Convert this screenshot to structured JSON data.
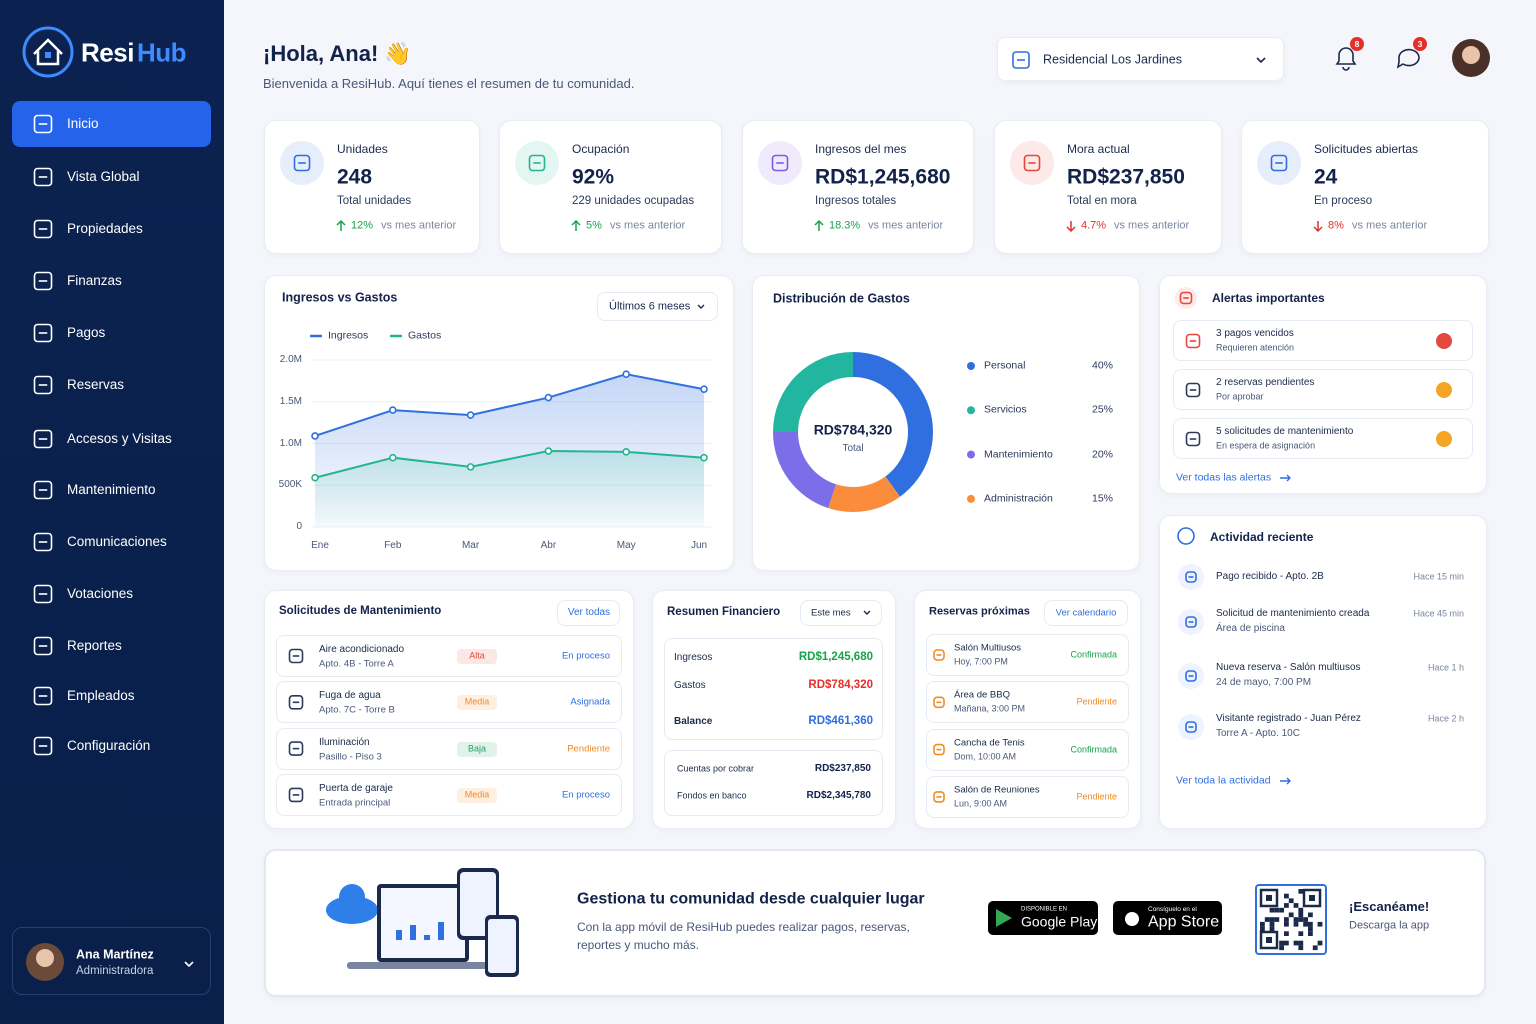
{
  "brand": {
    "first": "Resi",
    "second": "Hub"
  },
  "nav": [
    {
      "label": "Inicio",
      "active": true
    },
    {
      "label": "Vista Global"
    },
    {
      "label": "Propiedades"
    },
    {
      "label": "Finanzas"
    },
    {
      "label": "Pagos"
    },
    {
      "label": "Reservas"
    },
    {
      "label": "Accesos y Visitas"
    },
    {
      "label": "Mantenimiento"
    },
    {
      "label": "Comunicaciones"
    },
    {
      "label": "Votaciones"
    },
    {
      "label": "Reportes"
    },
    {
      "label": "Empleados"
    },
    {
      "label": "Configuración"
    }
  ],
  "user": {
    "name": "Ana Martínez",
    "role": "Administradora"
  },
  "header": {
    "greeting": "¡Hola, Ana! 👋",
    "subtitle": "Bienvenida a ResiHub. Aquí tienes el resumen de tu comunidad.",
    "community": "Residencial Los Jardines",
    "notifications": 8,
    "messages": 3
  },
  "kpis": [
    {
      "label": "Unidades",
      "value": "248",
      "sub": "Total unidades",
      "change": "12%",
      "compare": "vs mes anterior",
      "trend": "up",
      "color": "#2f6fe0"
    },
    {
      "label": "Ocupación",
      "value": "92%",
      "sub": "229 unidades ocupadas",
      "change": "5%",
      "compare": "vs mes anterior",
      "trend": "up",
      "color": "#22b58f"
    },
    {
      "label": "Ingresos del mes",
      "value": "RD$1,245,680",
      "sub": "Ingresos totales",
      "change": "18.3%",
      "compare": "vs mes anterior",
      "trend": "up",
      "color": "#7b5ce8"
    },
    {
      "label": "Mora actual",
      "value": "RD$237,850",
      "sub": "Total en mora",
      "change": "4.7%",
      "compare": "vs mes anterior",
      "trend": "down",
      "color": "#e5483e"
    },
    {
      "label": "Solicitudes abiertas",
      "value": "24",
      "sub": "En proceso",
      "change": "8%",
      "compare": "vs mes anterior",
      "trend": "down",
      "color": "#2f6fe0"
    }
  ],
  "chart_data": [
    {
      "type": "line",
      "title": "Ingresos vs Gastos",
      "period": "Últimos 6 meses",
      "categories": [
        "Ene",
        "Feb",
        "Mar",
        "Abr",
        "May",
        "Jun"
      ],
      "series": [
        {
          "name": "Ingresos",
          "color": "#2f6fe0",
          "values": [
            1090000,
            1400000,
            1340000,
            1550000,
            1830000,
            1650000
          ]
        },
        {
          "name": "Gastos",
          "color": "#22b58f",
          "values": [
            590000,
            830000,
            720000,
            910000,
            900000,
            830000
          ]
        }
      ],
      "ylim": [
        0,
        2000000
      ],
      "yticks": [
        0,
        {
          "value": 500000,
          "label": "500K"
        },
        {
          "value": 1000000,
          "label": "1.0M"
        },
        {
          "value": 1500000,
          "label": "1.5M"
        },
        {
          "value": 2000000,
          "label": "2.0M"
        }
      ],
      "grid": true,
      "legend": "top-left"
    },
    {
      "type": "pie",
      "title": "Distribución de Gastos",
      "center_value": "RD$784,320",
      "center_label": "Total",
      "categories": [
        "Personal",
        "Servicios",
        "Mantenimiento",
        "Administración"
      ],
      "values": [
        40,
        25,
        20,
        15
      ],
      "value_labels": [
        "40%",
        "25%",
        "20%",
        "15%"
      ],
      "colors": [
        "#2f6fe0",
        "#22b5a0",
        "#7b6ee8",
        "#fb8c3c"
      ],
      "legend": "right"
    }
  ],
  "alerts": {
    "title": "Alertas importantes",
    "link": "Ver todas las alertas",
    "items": [
      {
        "title": "3 pagos vencidos",
        "sub": "Requieren atención",
        "color": "#e5483e"
      },
      {
        "title": "2 reservas pendientes",
        "sub": "Por aprobar",
        "color": "#f5a524"
      },
      {
        "title": "5 solicitudes de mantenimiento",
        "sub": "En espera de asignación",
        "color": "#f5a524"
      }
    ]
  },
  "activity": {
    "title": "Actividad reciente",
    "link": "Ver toda la actividad",
    "items": [
      {
        "title": "Pago recibido - Apto. 2B",
        "time": "Hace 15 min"
      },
      {
        "title": "Solicitud de mantenimiento creada",
        "sub": "Área de piscina",
        "time": "Hace 45 min"
      },
      {
        "title": "Nueva reserva - Salón multiusos",
        "sub": "24 de mayo, 7:00 PM",
        "time": "Hace 1 h"
      },
      {
        "title": "Visitante registrado - Juan Pérez",
        "sub": "Torre A - Apto. 10C",
        "time": "Hace 2 h"
      }
    ]
  },
  "maintenance": {
    "title": "Solicitudes de Mantenimiento",
    "button": "Ver todas",
    "rows": [
      {
        "title": "Aire acondicionado",
        "sub": "Apto. 4B - Torre A",
        "priority": "Alta",
        "priority_color": "#e5483e",
        "status": "En proceso",
        "status_color": "#2f6fe0"
      },
      {
        "title": "Fuga de agua",
        "sub": "Apto. 7C - Torre B",
        "priority": "Media",
        "priority_color": "#f08c24",
        "status": "Asignada",
        "status_color": "#2f6fe0"
      },
      {
        "title": "Iluminación",
        "sub": "Pasillo - Piso 3",
        "priority": "Baja",
        "priority_color": "#22a06b",
        "status": "Pendiente",
        "status_color": "#f08c24"
      },
      {
        "title": "Puerta de garaje",
        "sub": "Entrada principal",
        "priority": "Media",
        "priority_color": "#f08c24",
        "status": "En proceso",
        "status_color": "#2f6fe0"
      }
    ]
  },
  "finance": {
    "title": "Resumen Financiero",
    "period": "Este mes",
    "rows": [
      {
        "label": "Ingresos",
        "value": "RD$1,245,680",
        "color": "#16a34a"
      },
      {
        "label": "Gastos",
        "value": "RD$784,320",
        "color": "#e5302a"
      },
      {
        "label": "Balance",
        "value": "RD$461,360",
        "color": "#2f6fe0"
      }
    ],
    "extra": [
      {
        "label": "Cuentas por cobrar",
        "value": "RD$237,850"
      },
      {
        "label": "Fondos en banco",
        "value": "RD$2,345,780"
      }
    ]
  },
  "bookings": {
    "title": "Reservas próximas",
    "button": "Ver calendario",
    "items": [
      {
        "title": "Salón Multiusos",
        "sub": "Hoy, 7:00 PM",
        "status": "Confirmada",
        "status_color": "#16a34a"
      },
      {
        "title": "Área de BBQ",
        "sub": "Mañana, 3:00 PM",
        "status": "Pendiente",
        "status_color": "#f08c24"
      },
      {
        "title": "Cancha de Tenis",
        "sub": "Dom, 10:00 AM",
        "status": "Confirmada",
        "status_color": "#16a34a"
      },
      {
        "title": "Salón de Reuniones",
        "sub": "Lun, 9:00 AM",
        "status": "Pendiente",
        "status_color": "#f08c24"
      }
    ]
  },
  "promo": {
    "title": "Gestiona tu comunidad desde cualquier lugar",
    "text": [
      "Con la app móvil de ResiHub puedes realizar pagos, reservas,",
      "reportes y mucho más."
    ],
    "google": {
      "small": "DISPONIBLE EN",
      "big": "Google Play"
    },
    "apple": {
      "small": "Consíguelo en el",
      "big": "App Store"
    },
    "qr": {
      "title": "¡Escanéame!",
      "sub": "Descarga la app"
    }
  }
}
